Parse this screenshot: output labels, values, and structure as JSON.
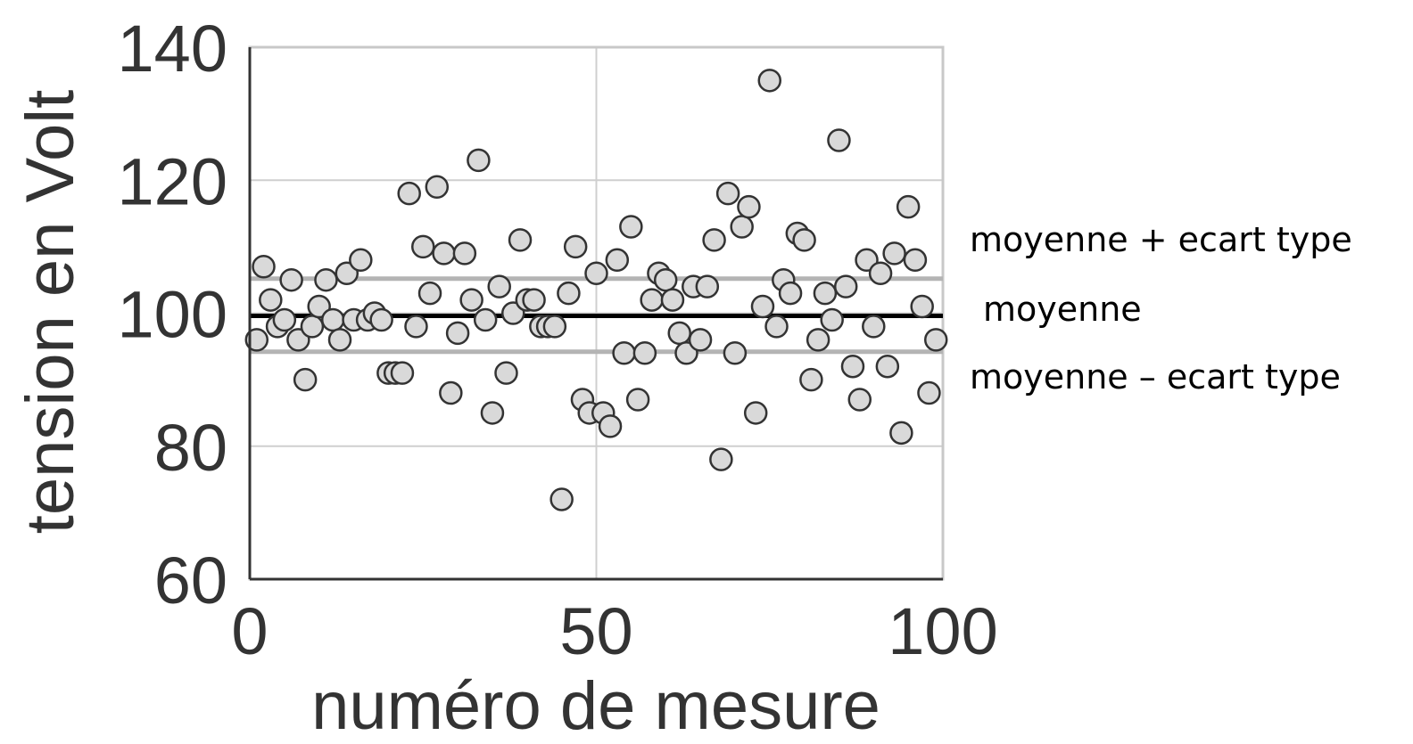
{
  "chart_data": {
    "type": "scatter",
    "title": "",
    "xlabel": "numéro de mesure",
    "ylabel": "tension en Volt",
    "xlim": [
      0,
      100
    ],
    "ylim": [
      60,
      140
    ],
    "xticks": [
      "0",
      "50",
      "100"
    ],
    "yticks": [
      "60",
      "80",
      "100",
      "120",
      "140"
    ],
    "grid": true,
    "marker_color": "#d9d9d9",
    "marker_edge_color": "#333333",
    "lines": [
      {
        "id": "mean_plus",
        "label": "moyenne + ecart type",
        "value": 105.2,
        "color": "#b4b4b4"
      },
      {
        "id": "mean",
        "label": "moyenne",
        "value": 99.6,
        "color": "#000000"
      },
      {
        "id": "mean_minus",
        "label": "moyenne – ecart type",
        "value": 94.2,
        "color": "#b4b4b4"
      }
    ],
    "points": [
      [
        1,
        96
      ],
      [
        2,
        107
      ],
      [
        3,
        102
      ],
      [
        4,
        98
      ],
      [
        5,
        99
      ],
      [
        6,
        105
      ],
      [
        7,
        96
      ],
      [
        8,
        90
      ],
      [
        9,
        98
      ],
      [
        10,
        101
      ],
      [
        11,
        105
      ],
      [
        12,
        99
      ],
      [
        13,
        96
      ],
      [
        14,
        106
      ],
      [
        15,
        99
      ],
      [
        16,
        108
      ],
      [
        17,
        99
      ],
      [
        18,
        100
      ],
      [
        19,
        99
      ],
      [
        20,
        91
      ],
      [
        21,
        91
      ],
      [
        22,
        91
      ],
      [
        23,
        118
      ],
      [
        24,
        98
      ],
      [
        25,
        110
      ],
      [
        26,
        103
      ],
      [
        27,
        119
      ],
      [
        28,
        109
      ],
      [
        29,
        88
      ],
      [
        30,
        97
      ],
      [
        31,
        109
      ],
      [
        32,
        102
      ],
      [
        33,
        123
      ],
      [
        34,
        99
      ],
      [
        35,
        85
      ],
      [
        36,
        104
      ],
      [
        37,
        91
      ],
      [
        38,
        100
      ],
      [
        39,
        111
      ],
      [
        40,
        102
      ],
      [
        41,
        102
      ],
      [
        42,
        98
      ],
      [
        43,
        98
      ],
      [
        44,
        98
      ],
      [
        45,
        72
      ],
      [
        46,
        103
      ],
      [
        47,
        110
      ],
      [
        48,
        87
      ],
      [
        49,
        85
      ],
      [
        50,
        106
      ],
      [
        51,
        85
      ],
      [
        52,
        83
      ],
      [
        53,
        108
      ],
      [
        54,
        94
      ],
      [
        55,
        113
      ],
      [
        56,
        87
      ],
      [
        57,
        94
      ],
      [
        58,
        102
      ],
      [
        59,
        106
      ],
      [
        60,
        105
      ],
      [
        61,
        102
      ],
      [
        62,
        97
      ],
      [
        63,
        94
      ],
      [
        64,
        104
      ],
      [
        65,
        96
      ],
      [
        66,
        104
      ],
      [
        67,
        111
      ],
      [
        68,
        78
      ],
      [
        69,
        118
      ],
      [
        70,
        94
      ],
      [
        71,
        113
      ],
      [
        72,
        116
      ],
      [
        73,
        85
      ],
      [
        74,
        101
      ],
      [
        75,
        135
      ],
      [
        76,
        98
      ],
      [
        77,
        105
      ],
      [
        78,
        103
      ],
      [
        79,
        112
      ],
      [
        80,
        111
      ],
      [
        81,
        90
      ],
      [
        82,
        96
      ],
      [
        83,
        103
      ],
      [
        84,
        99
      ],
      [
        85,
        126
      ],
      [
        86,
        104
      ],
      [
        87,
        92
      ],
      [
        88,
        87
      ],
      [
        89,
        108
      ],
      [
        90,
        98
      ],
      [
        91,
        106
      ],
      [
        92,
        92
      ],
      [
        93,
        109
      ],
      [
        94,
        82
      ],
      [
        95,
        116
      ],
      [
        96,
        108
      ],
      [
        97,
        101
      ],
      [
        98,
        88
      ],
      [
        99,
        96
      ]
    ]
  }
}
